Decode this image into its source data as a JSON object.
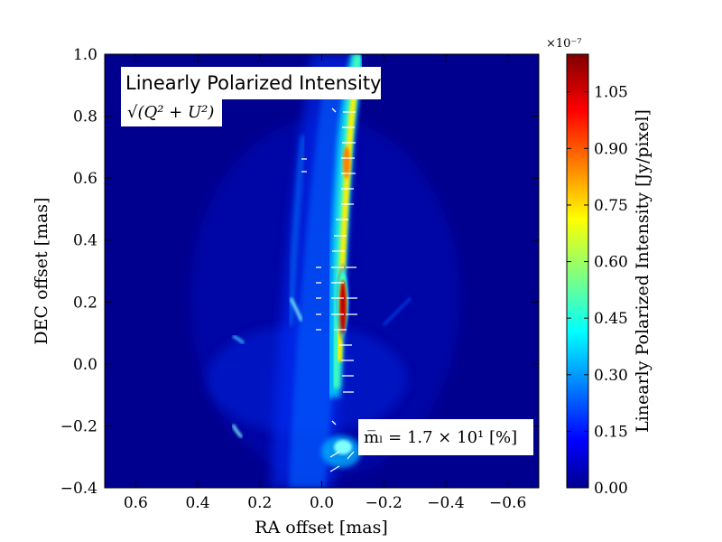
{
  "chart_data": {
    "type": "heatmap",
    "title": "",
    "xlabel": "RA offset [mas]",
    "ylabel": "DEC offset [mas]",
    "xlim": [
      0.7,
      -0.7
    ],
    "ylim": [
      -0.4,
      1.0
    ],
    "x_ticks": [
      "0.6",
      "0.4",
      "0.2",
      "0.0",
      "−0.2",
      "−0.4",
      "−0.6"
    ],
    "x_tick_values": [
      0.6,
      0.4,
      0.2,
      0.0,
      -0.2,
      -0.4,
      -0.6
    ],
    "y_ticks": [
      "−0.4",
      "−0.2",
      "0.0",
      "0.2",
      "0.4",
      "0.6",
      "0.8",
      "1.0"
    ],
    "y_tick_values": [
      -0.4,
      -0.2,
      0.0,
      0.2,
      0.4,
      0.6,
      0.8,
      1.0
    ],
    "colormap": "jet",
    "colorbar": {
      "label": "Linearly Polarized Intensity [Jy/pixel]",
      "exponent_label": "×10⁻⁷",
      "range": [
        0.0,
        1.15
      ],
      "ticks": [
        "0.00",
        "0.15",
        "0.30",
        "0.45",
        "0.60",
        "0.75",
        "0.90",
        "1.05"
      ],
      "tick_values": [
        0.0,
        0.15,
        0.3,
        0.45,
        0.6,
        0.75,
        0.9,
        1.05
      ]
    },
    "annotations": {
      "title_box": "Linearly Polarized Intensity",
      "formula": "√(Q² + U²)",
      "stat_box": "m̅ₗ =  1.7 × 10¹ [%]"
    },
    "colors": {
      "background": "#00008f",
      "low": "#0000ff",
      "mid": "#00ffff",
      "high": "#ffff00",
      "peak": "#800000"
    }
  }
}
